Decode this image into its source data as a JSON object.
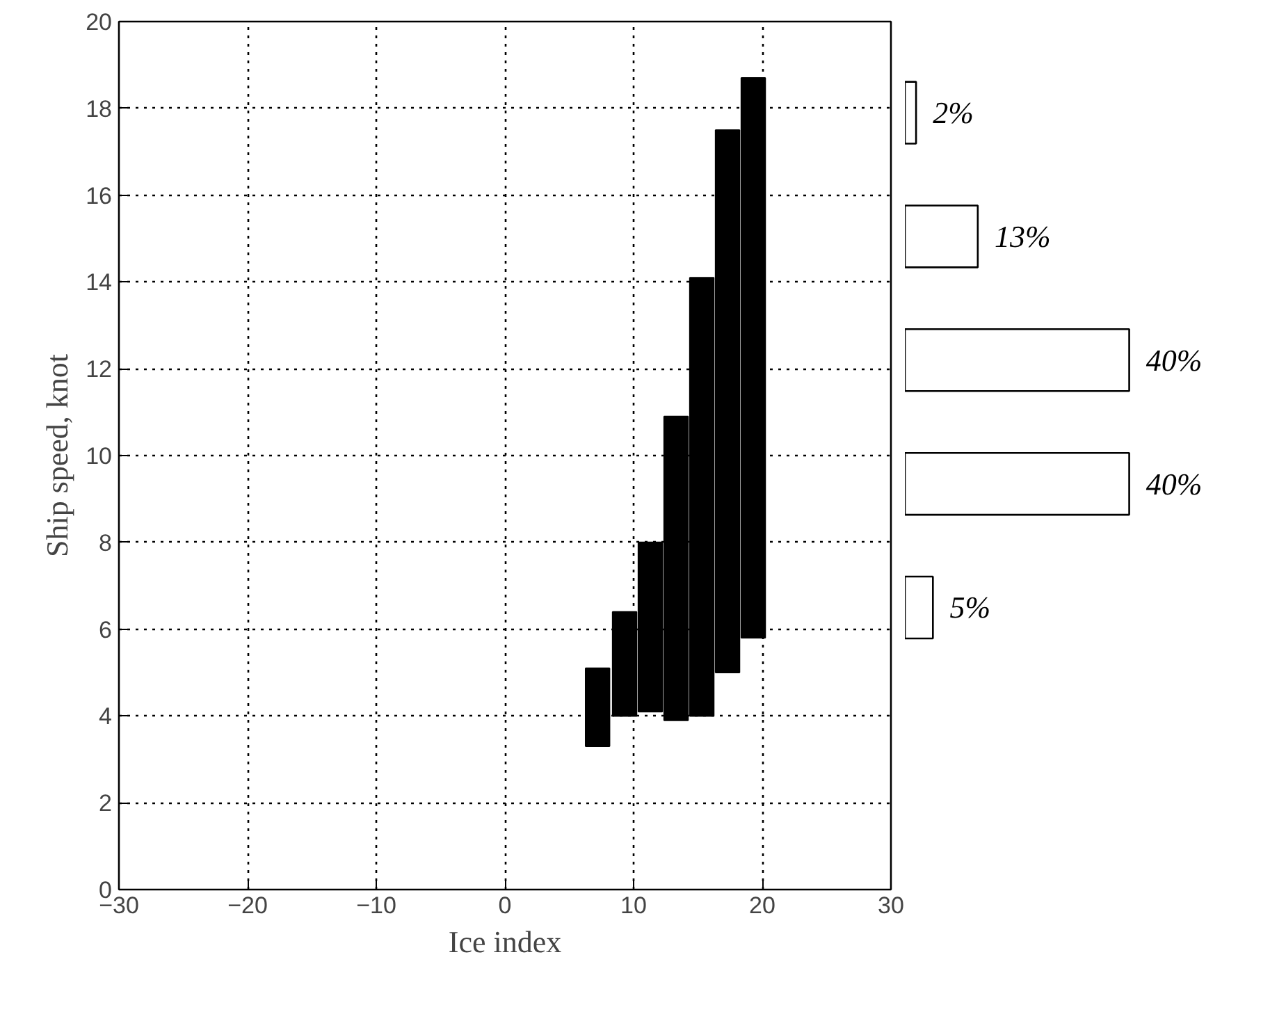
{
  "chart_data": [
    {
      "type": "bar",
      "xlabel": "Ice index",
      "ylabel": "Ship speed, knot",
      "xlim": [
        -30,
        30
      ],
      "xticks": [
        -30,
        -20,
        -10,
        0,
        10,
        20,
        30
      ],
      "ylim": [
        0,
        20
      ],
      "yticks": [
        0,
        2,
        4,
        6,
        8,
        10,
        12,
        14,
        16,
        18,
        20
      ],
      "grid": true,
      "x": [
        7.2,
        9.3,
        11.3,
        13.3,
        15.3,
        17.3,
        19.3
      ],
      "series": [
        {
          "color": "#000000",
          "base": [
            3.3,
            4.0,
            4.1,
            3.9,
            4.0,
            5.0,
            5.8
          ],
          "values": [
            1.8,
            2.4,
            3.9,
            7.0,
            10.1,
            12.5,
            12.9
          ]
        }
      ]
    },
    {
      "type": "bar",
      "orientation": "horizontal",
      "categories": [
        null,
        null,
        null,
        null,
        null
      ],
      "series": [
        {
          "color": "#ffffff",
          "values": [
            2,
            13,
            40,
            40,
            5
          ],
          "value_labels": [
            "2%",
            "13%",
            "40%",
            "40%",
            "5%"
          ]
        }
      ]
    }
  ]
}
